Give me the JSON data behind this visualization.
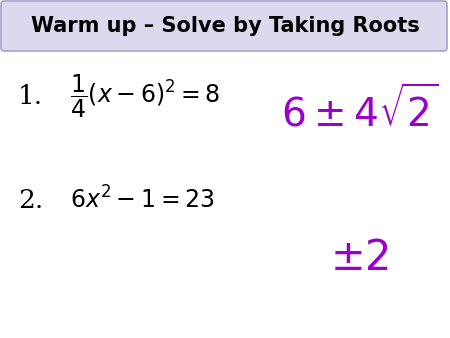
{
  "title": "Warm up – Solve by Taking Roots",
  "title_bg_color": "#ddd8ee",
  "title_border_color": "#aaa0cc",
  "bg_color": "#ffffff",
  "title_text_color": "#000000",
  "answer_color": "#9900cc",
  "problem_color": "#000000",
  "problem1_number": "1.",
  "problem1_eq": "$\\dfrac{1}{4}(x-6)^2 = 8$",
  "problem1_answer": "$6 \\pm 4\\sqrt{2}$",
  "problem2_number": "2.",
  "problem2_eq": "$6x^2 - 1 = 23$",
  "problem2_answer": "$\\pm 2$",
  "title_fontsize": 15,
  "problem_fontsize": 17,
  "answer1_fontsize": 28,
  "number_fontsize": 19,
  "answer2_fontsize": 30
}
